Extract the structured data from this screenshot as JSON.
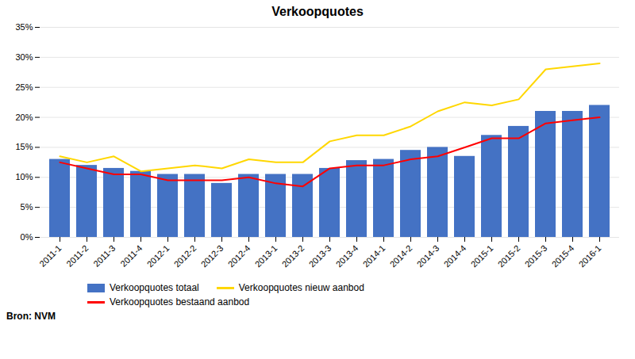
{
  "chart_data": {
    "type": "bar",
    "title": "Verkoopquotes",
    "categories": [
      "2011-1",
      "2011-2",
      "2011-3",
      "2011-4",
      "2012-1",
      "2012-2",
      "2012-3",
      "2012-4",
      "2013-1",
      "2013-2",
      "2013-3",
      "2013-4",
      "2014-1",
      "2014-2",
      "2014-3",
      "2014-4",
      "2015-1",
      "2015-2",
      "2015-3",
      "2015-4",
      "2016-1"
    ],
    "series": [
      {
        "name": "Verkoopquotes totaal",
        "type": "bar",
        "color": "#4472C4",
        "values": [
          13.0,
          12.0,
          11.5,
          11.0,
          10.5,
          10.5,
          9.0,
          10.5,
          10.5,
          10.5,
          11.5,
          12.8,
          13.0,
          14.5,
          15.0,
          13.5,
          17.0,
          18.5,
          21.0,
          21.0,
          22.0
        ]
      },
      {
        "name": "Verkoopquotes nieuw aanbod",
        "type": "line",
        "color": "#FFD700",
        "values": [
          13.5,
          12.5,
          13.5,
          11.0,
          11.5,
          12.0,
          11.5,
          13.0,
          12.5,
          12.5,
          16.0,
          17.0,
          17.0,
          18.5,
          21.0,
          22.5,
          22.0,
          23.0,
          28.0,
          28.5,
          29.0
        ]
      },
      {
        "name": "Verkoopquotes bestaand aanbod",
        "type": "line",
        "color": "#FF0000",
        "values": [
          12.5,
          11.5,
          10.5,
          10.5,
          9.5,
          9.5,
          9.5,
          10.0,
          9.0,
          8.5,
          11.5,
          12.0,
          12.0,
          13.0,
          13.5,
          15.0,
          16.5,
          16.5,
          19.0,
          19.5,
          20.0
        ]
      }
    ],
    "ylim": [
      0,
      35
    ],
    "yticks": [
      {
        "value": 0,
        "label": "0%"
      },
      {
        "value": 5,
        "label": "5%"
      },
      {
        "value": 10,
        "label": "10%"
      },
      {
        "value": 15,
        "label": "15%"
      },
      {
        "value": 20,
        "label": "20%"
      },
      {
        "value": 25,
        "label": "25%"
      },
      {
        "value": 30,
        "label": "30%"
      },
      {
        "value": 35,
        "label": "35%"
      }
    ],
    "grid": true,
    "legend": "bottom",
    "annotations": [
      "Bron: NVM"
    ]
  }
}
